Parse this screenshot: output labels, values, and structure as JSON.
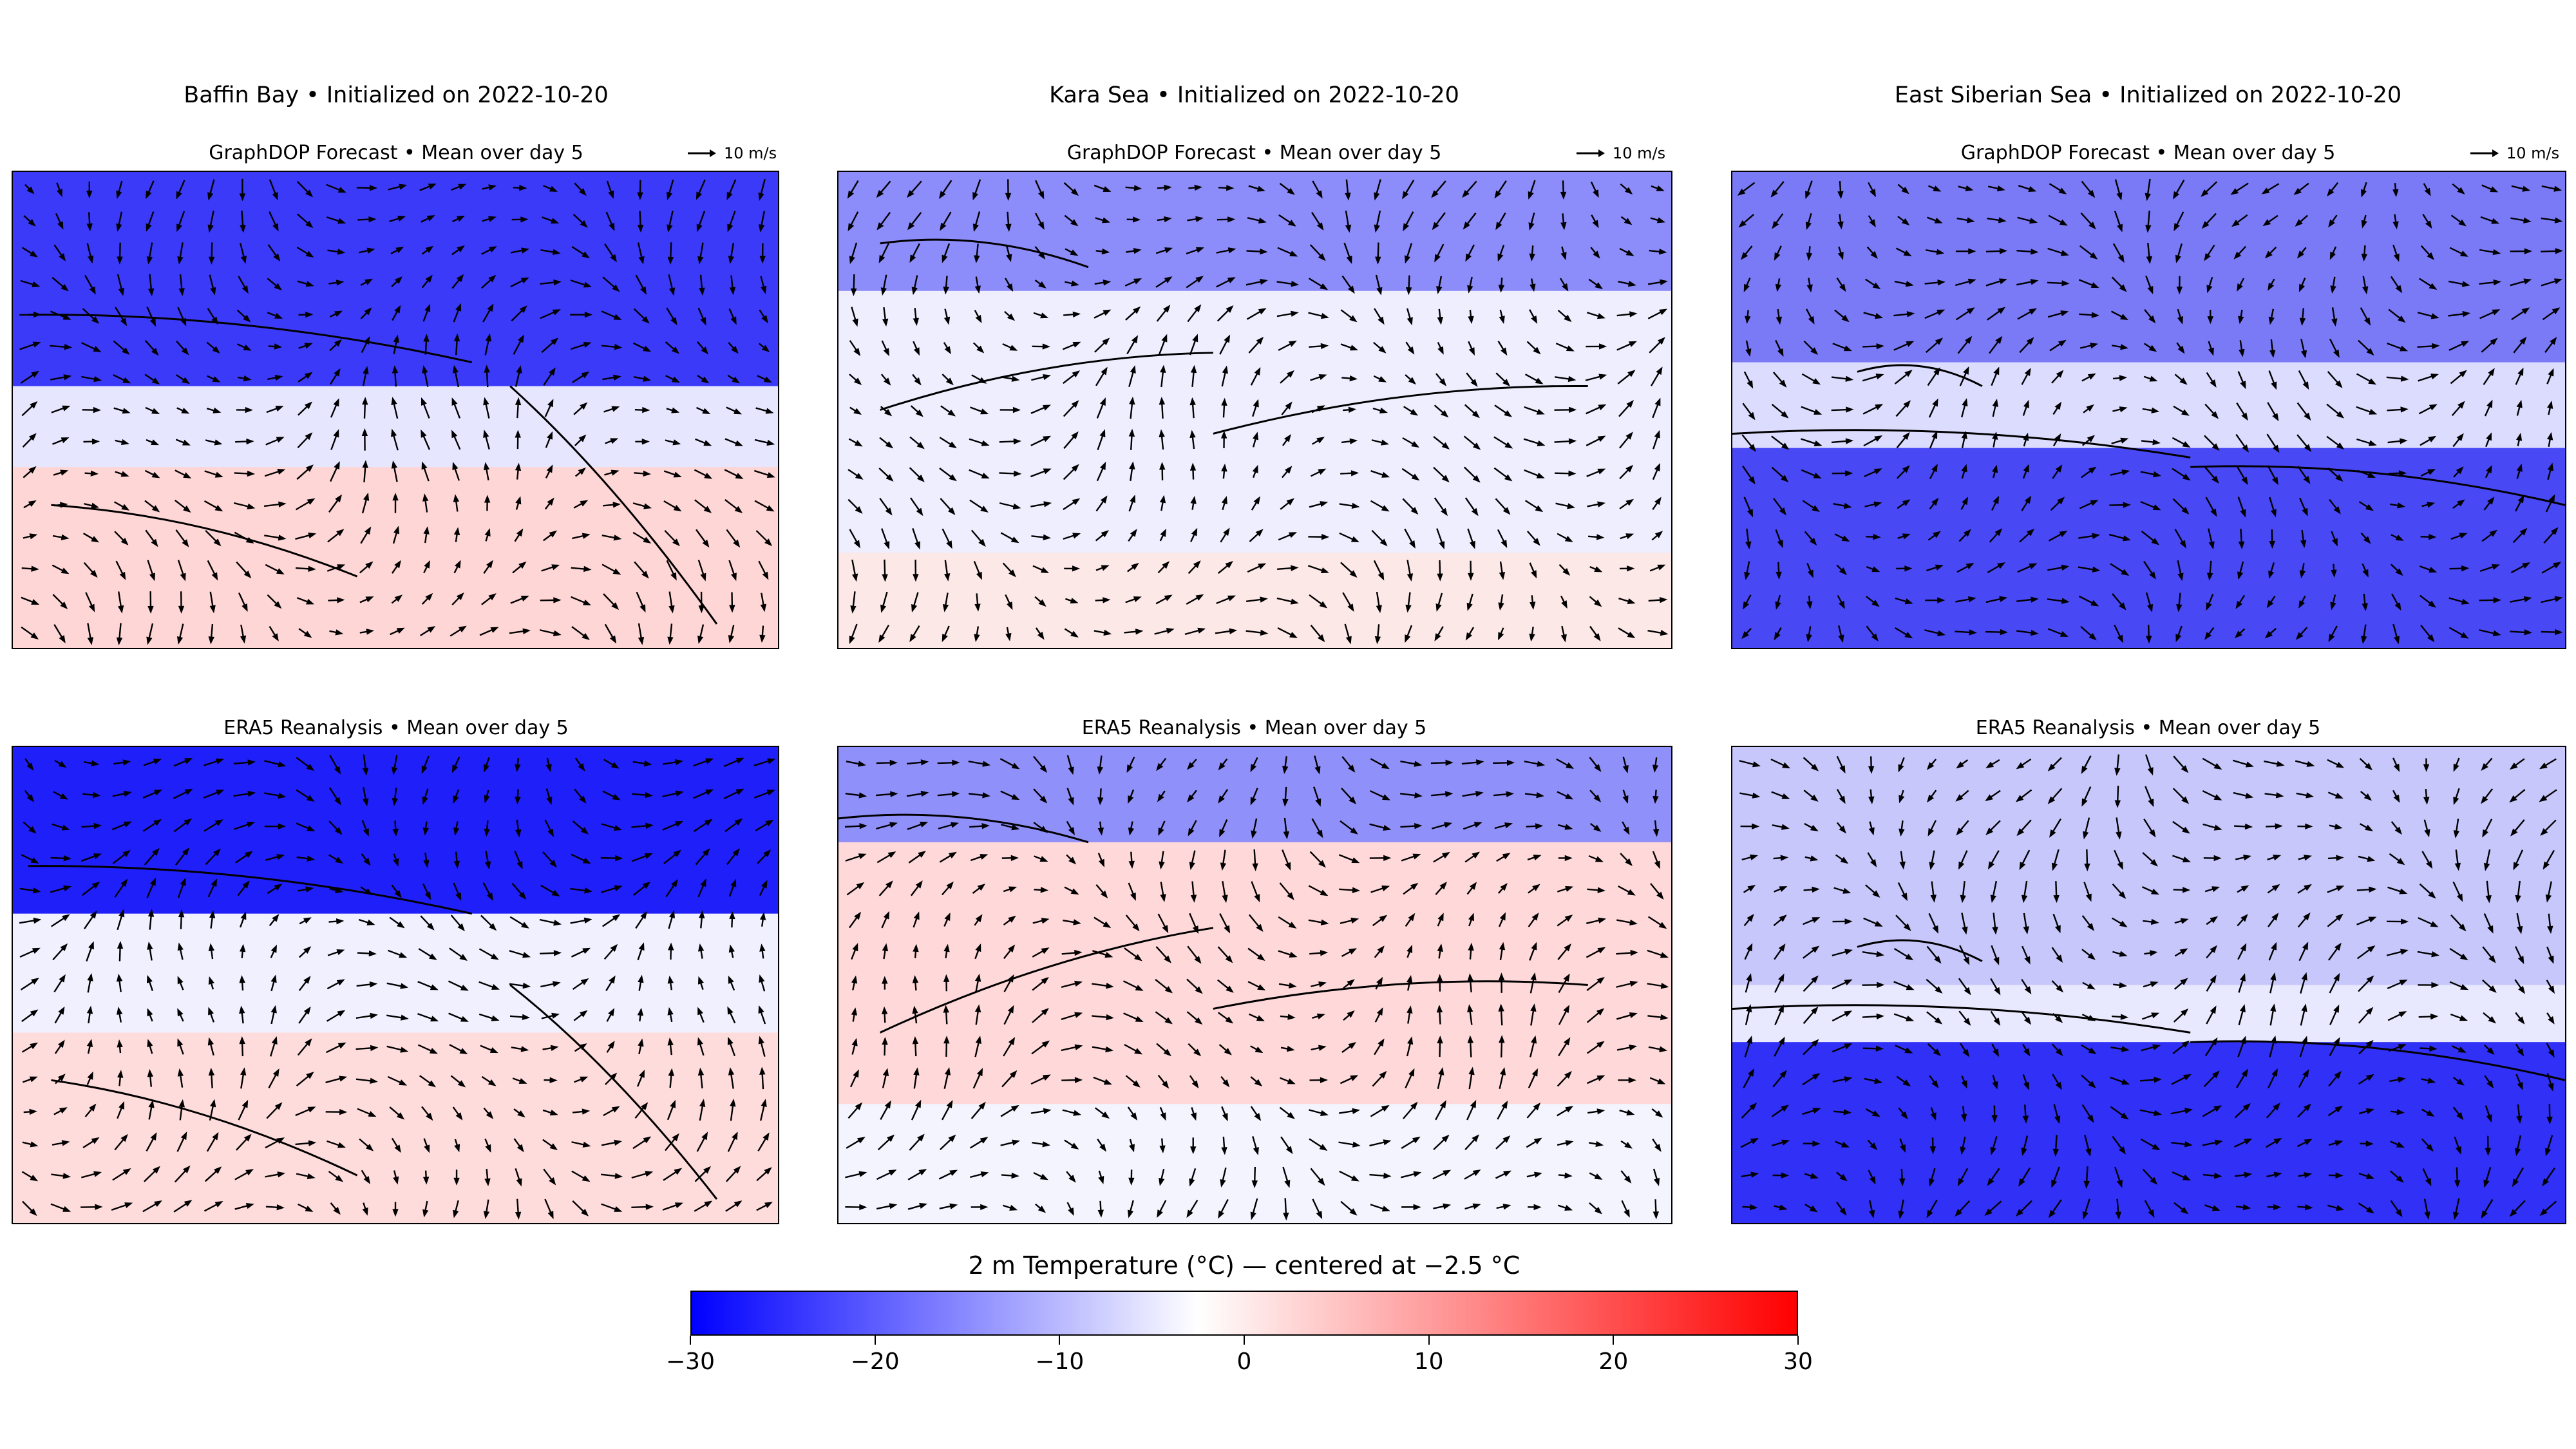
{
  "chart_data": {
    "type": "heatmap",
    "title": "2 m Temperature (°C) — centered at −2.5 °C",
    "colormap": {
      "low": "#0000ff",
      "center": "#ffffff",
      "high": "#ff0000",
      "vmin": -30,
      "vcenter": -2.5,
      "vmax": 30
    },
    "colorbar_ticks": [
      "−30",
      "−20",
      "−10",
      "0",
      "10",
      "20",
      "30"
    ],
    "colorbar_tick_values": [
      -30,
      -20,
      -10,
      0,
      10,
      20,
      30
    ],
    "quiver_key": "10 m/s",
    "regions": [
      {
        "title": "Baffin Bay • Initialized on 2022-10-20"
      },
      {
        "title": "Kara Sea • Initialized on 2022-10-20"
      },
      {
        "title": "East Siberian Sea • Initialized on 2022-10-20"
      }
    ],
    "rows": [
      {
        "title": "GraphDOP Forecast • Mean over day 5"
      },
      {
        "title": "ERA5 Reanalysis • Mean over day 5"
      }
    ]
  }
}
